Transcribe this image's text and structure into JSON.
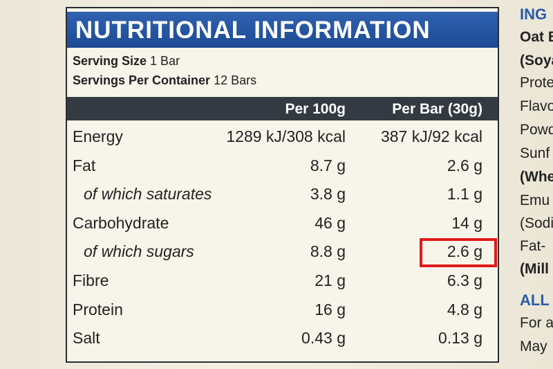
{
  "label": {
    "title": "NUTRITIONAL INFORMATION",
    "serving_size": {
      "label": "Serving Size",
      "value": "1 Bar"
    },
    "servings_per_container": {
      "label": "Servings Per Container",
      "value": "12 Bars"
    },
    "columns": [
      "Per 100g",
      "Per Bar (30g)"
    ],
    "rows": [
      {
        "name": "Energy",
        "indent": false,
        "per_100g": "1289 kJ/308 kcal",
        "per_bar": "387 kJ/92 kcal"
      },
      {
        "name": "Fat",
        "indent": false,
        "per_100g": "8.7 g",
        "per_bar": "2.6 g"
      },
      {
        "name": "of which saturates",
        "indent": true,
        "per_100g": "3.8 g",
        "per_bar": "1.1 g"
      },
      {
        "name": "Carbohydrate",
        "indent": false,
        "per_100g": "46 g",
        "per_bar": "14 g"
      },
      {
        "name": "of which sugars",
        "indent": true,
        "per_100g": "8.8 g",
        "per_bar": "2.6 g",
        "highlight": true
      },
      {
        "name": "Fibre",
        "indent": false,
        "per_100g": "21 g",
        "per_bar": "6.3 g"
      },
      {
        "name": "Protein",
        "indent": false,
        "per_100g": "16 g",
        "per_bar": "4.8 g"
      },
      {
        "name": "Salt",
        "indent": false,
        "per_100g": "0.43 g",
        "per_bar": "0.13 g"
      }
    ]
  },
  "ingredients_fragment": [
    {
      "text": "ING",
      "style": "heading"
    },
    {
      "text": "Oat B",
      "style": "bold"
    },
    {
      "text": "(Soya",
      "style": "bold"
    },
    {
      "text": "Prote",
      "style": "normal"
    },
    {
      "text": "Flavo",
      "style": "normal"
    },
    {
      "text": "Powd",
      "style": "normal"
    },
    {
      "text": "Sunf",
      "style": "normal"
    },
    {
      "text": "(Whe",
      "style": "bold"
    },
    {
      "text": "Emu",
      "style": "normal"
    },
    {
      "text": "(Sodi",
      "style": "normal"
    },
    {
      "text": "Fat-",
      "style": "normal"
    },
    {
      "text": "(Mill",
      "style": "bold"
    },
    {
      "text": "ALL",
      "style": "heading"
    },
    {
      "text": "For a",
      "style": "normal"
    },
    {
      "text": "May",
      "style": "normal"
    }
  ]
}
